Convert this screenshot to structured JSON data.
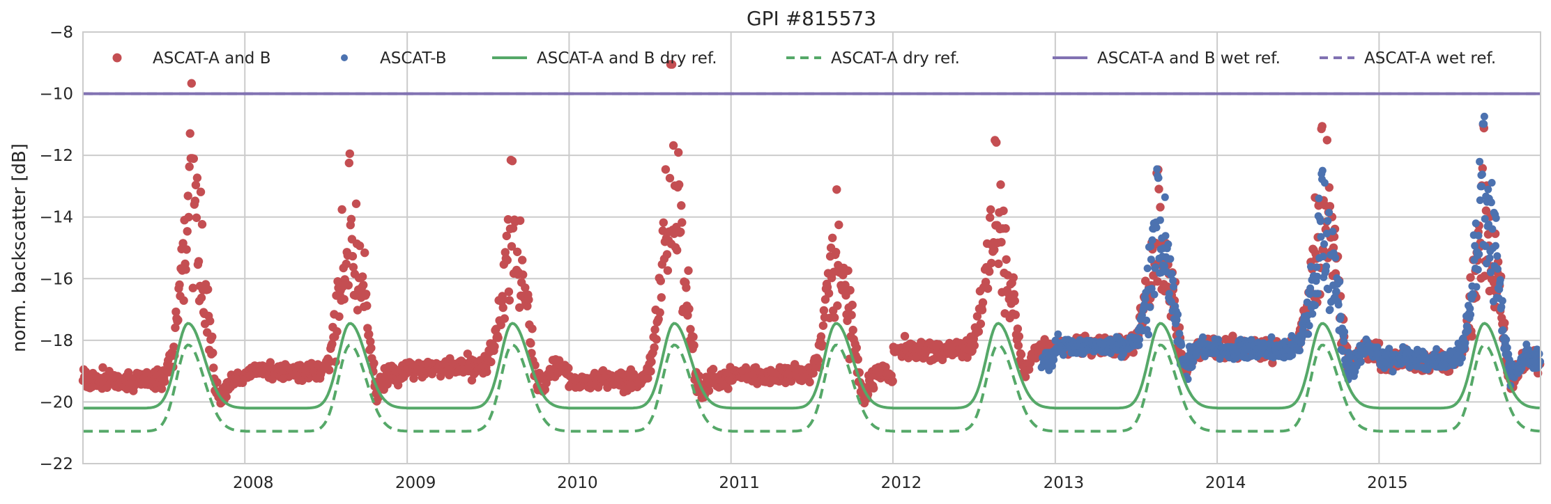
{
  "chart_data": {
    "type": "scatter",
    "title": "GPI #815573",
    "xlabel": "",
    "ylabel": "norm. backscatter [dB]",
    "xlim": [
      "2007-01-01",
      "2015-12-31"
    ],
    "ylim": [
      -22,
      -8
    ],
    "x_ticks": [
      "2008",
      "2009",
      "2010",
      "2011",
      "2012",
      "2013",
      "2014",
      "2015"
    ],
    "y_ticks": [
      "-22",
      "-20",
      "-18",
      "-16",
      "-14",
      "-12",
      "-10",
      "-8"
    ],
    "grid": true,
    "legend": "top",
    "series": [
      {
        "name": "ASCAT-A and B",
        "kind": "scatter",
        "color": "#c44e52",
        "date_range": [
          "2007-01-01",
          "2015-12-31"
        ],
        "yearly_peaks": [
          {
            "year": 2007,
            "peak_date": "2007-09-01",
            "peak_db": -10.0
          },
          {
            "year": 2008,
            "peak_date": "2008-08-25",
            "peak_db": -12.4
          },
          {
            "year": 2009,
            "peak_date": "2009-08-25",
            "peak_db": -12.6
          },
          {
            "year": 2010,
            "peak_date": "2010-08-20",
            "peak_db": -9.5
          },
          {
            "year": 2011,
            "peak_date": "2011-08-25",
            "peak_db": -13.3
          },
          {
            "year": 2012,
            "peak_date": "2012-08-20",
            "peak_db": -11.8
          },
          {
            "year": 2013,
            "peak_date": "2013-08-20",
            "peak_db": -12.9
          },
          {
            "year": 2014,
            "peak_date": "2014-08-25",
            "peak_db": -11.3
          },
          {
            "year": 2015,
            "peak_date": "2015-08-25",
            "peak_db": -11.2
          }
        ],
        "baseline_db": [
          {
            "year": 2007,
            "value": -19.3
          },
          {
            "year": 2008,
            "value": -19.0
          },
          {
            "year": 2009,
            "value": -18.9
          },
          {
            "year": 2010,
            "value": -19.3
          },
          {
            "year": 2011,
            "value": -19.1
          },
          {
            "year": 2012,
            "value": -18.3
          },
          {
            "year": 2013,
            "value": -18.2
          },
          {
            "year": 2014,
            "value": -18.3
          },
          {
            "year": 2015,
            "value": -18.7
          }
        ]
      },
      {
        "name": "ASCAT-B",
        "kind": "scatter",
        "color": "#4c72b0",
        "date_range": [
          "2012-12-01",
          "2015-12-31"
        ],
        "yearly_peaks": [
          {
            "year": 2013,
            "peak_date": "2013-08-20",
            "peak_db": -12.9
          },
          {
            "year": 2014,
            "peak_date": "2014-08-25",
            "peak_db": -12.8
          },
          {
            "year": 2015,
            "peak_date": "2015-08-25",
            "peak_db": -11.2
          }
        ],
        "baseline_db": [
          {
            "year": 2013,
            "value": -18.2
          },
          {
            "year": 2014,
            "value": -18.3
          },
          {
            "year": 2015,
            "value": -18.6
          }
        ]
      },
      {
        "name": "ASCAT-A and B dry ref.",
        "kind": "line",
        "style": "solid",
        "color": "#55a868",
        "seasonal_profile": {
          "base_db": -20.2,
          "peak_db": -17.45,
          "peak_day_of_year": 237
        }
      },
      {
        "name": "ASCAT-A dry ref.",
        "kind": "line",
        "style": "dashed",
        "color": "#55a868",
        "seasonal_profile": {
          "base_db": -20.95,
          "peak_db": -18.15,
          "peak_day_of_year": 237
        }
      },
      {
        "name": "ASCAT-A and B wet ref.",
        "kind": "line",
        "style": "solid",
        "color": "#8172b2",
        "value": -10.0
      },
      {
        "name": "ASCAT-A wet ref.",
        "kind": "line",
        "style": "dashed",
        "color": "#8172b2",
        "value": -10.0
      }
    ]
  }
}
